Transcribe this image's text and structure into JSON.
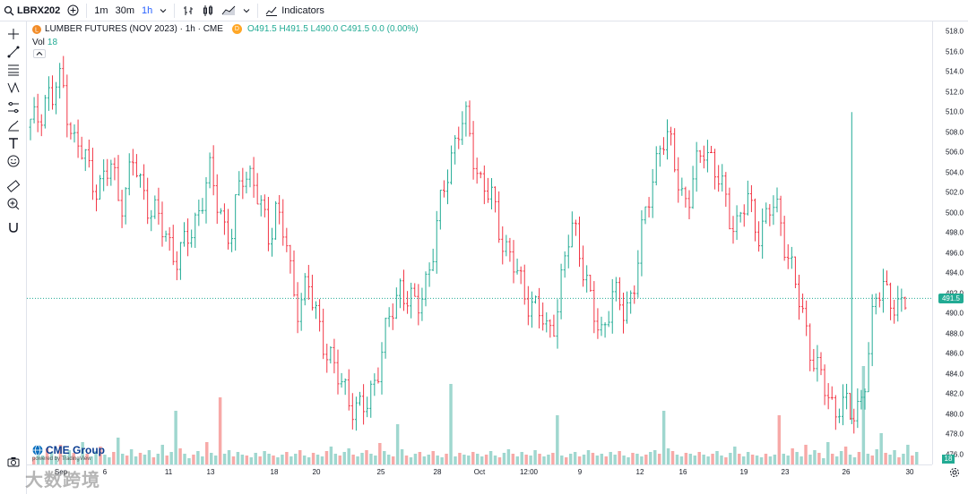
{
  "topbar": {
    "symbol": "LBRX202",
    "timeframes": [
      "1m",
      "30m",
      "1h"
    ],
    "active_timeframe": "1h",
    "indicators_label": "Indicators"
  },
  "legend": {
    "title": "LUMBER FUTURES (NOV 2023) · 1h · CME",
    "badge": "D",
    "ohlc": "O491.5  H491.5  L490.0  C491.5  0.0 (0.00%)",
    "volume_label": "Vol",
    "volume_value": "18"
  },
  "price_label": "491.5",
  "volume_badge": "18",
  "branding": {
    "logo": "CME Group",
    "powered_by": "powered by TradingView"
  },
  "watermark": "大数跨境",
  "colors": {
    "up": "#22ab94",
    "down": "#f23645",
    "up_vol": "#9fd7cf",
    "down_vol": "#f7a9a7"
  },
  "chart_data": {
    "type": "ohlc-bar",
    "y_axis_ticks": [
      518.0,
      516.0,
      514.0,
      512.0,
      510.0,
      508.0,
      506.0,
      504.0,
      502.0,
      500.0,
      498.0,
      496.0,
      494.0,
      492.0,
      490.0,
      488.0,
      486.0,
      484.0,
      482.0,
      480.0,
      478.0,
      476.0
    ],
    "ylim": [
      475.0,
      519.0
    ],
    "x_axis_labels": [
      "Sep",
      "6",
      "11",
      "13",
      "18",
      "20",
      "25",
      "28",
      "Oct",
      "12:00",
      "9",
      "12",
      "16",
      "19",
      "23",
      "26",
      "30"
    ],
    "current_price": 491.5,
    "trend_closes": [
      508.5,
      509,
      510.5,
      512,
      511,
      513,
      512.5,
      510,
      507,
      506,
      505.5,
      504,
      503,
      502.5,
      503.5,
      505,
      502,
      501.5,
      503,
      505,
      503.5,
      502,
      500.5,
      499.5,
      498.5,
      498,
      496.5,
      495.5,
      496,
      497.5,
      499,
      500.5,
      502,
      503.5,
      502,
      500.5,
      498,
      497.5,
      501,
      504,
      504.5,
      503,
      501,
      499,
      497.5,
      501,
      499,
      497,
      493,
      491,
      492,
      493,
      490.5,
      489,
      487.5,
      486,
      484,
      483,
      482.5,
      481.5,
      480.5,
      480,
      481,
      483,
      485,
      487,
      489,
      491,
      493,
      492,
      491,
      490,
      492,
      494,
      496,
      499,
      502,
      505,
      507,
      508.5,
      509,
      507,
      505,
      503,
      502,
      501,
      499,
      497.5,
      496,
      494.5,
      493,
      492,
      491.5,
      490.5,
      489.5,
      488,
      489,
      491,
      494,
      497,
      499,
      497,
      494,
      491,
      489,
      488,
      490,
      492,
      491,
      490,
      491,
      493,
      496,
      499,
      502,
      505,
      507.5,
      507,
      506,
      504,
      502,
      501,
      503,
      505,
      507,
      506,
      504,
      502.5,
      501,
      499.5,
      499,
      500,
      501,
      499.5,
      498.5,
      499,
      500,
      500.5,
      499.5,
      497,
      494.5,
      492,
      490,
      488,
      486,
      484,
      482.5,
      481.5,
      480.5,
      481.5,
      480.5,
      479.5,
      480.5,
      482,
      485,
      489,
      492,
      493.5,
      492,
      490.5,
      489.5,
      491.5
    ],
    "volume_heights": [
      8,
      12,
      10,
      18,
      14,
      9,
      22,
      11,
      16,
      13,
      7,
      25,
      12,
      9,
      15,
      20,
      11,
      8,
      14,
      30,
      12,
      10,
      17,
      9,
      13,
      11,
      16,
      8,
      12,
      22,
      10,
      14,
      9,
      18,
      12,
      7,
      11,
      15,
      9,
      25,
      13,
      10,
      8,
      12,
      16,
      9,
      14,
      11,
      10,
      8,
      13,
      9,
      15,
      12,
      10,
      8,
      11,
      14,
      9,
      12,
      16,
      10,
      8,
      13,
      11,
      9,
      15,
      20,
      12,
      10,
      14,
      18,
      11,
      9,
      13,
      16,
      12,
      10,
      24,
      15,
      11,
      9,
      13,
      17,
      10,
      8,
      12,
      14,
      9,
      11,
      15,
      10,
      8,
      12,
      16,
      9,
      13,
      11,
      10,
      14,
      12,
      9,
      11,
      15,
      10,
      8,
      13,
      17,
      12,
      9,
      14,
      11,
      10,
      16,
      12,
      9,
      11,
      13,
      15,
      10,
      8,
      12,
      14,
      9,
      11,
      16,
      13,
      10,
      12,
      9,
      14,
      11,
      15,
      10,
      8,
      13,
      12,
      9,
      11,
      14,
      16,
      12,
      10,
      18,
      15,
      11,
      9,
      13,
      12,
      10,
      14,
      11,
      9,
      12,
      15,
      10,
      8,
      13,
      20,
      12,
      9,
      14,
      11,
      10,
      8,
      12,
      9,
      11
    ],
    "volume_spikes": {
      "0.16": 60,
      "0.21": 75,
      "0.41": 45,
      "0.47": 90,
      "0.59": 55,
      "0.71": 60,
      "0.84": 55,
      "0.935": 110,
      "0.955": 35
    }
  }
}
